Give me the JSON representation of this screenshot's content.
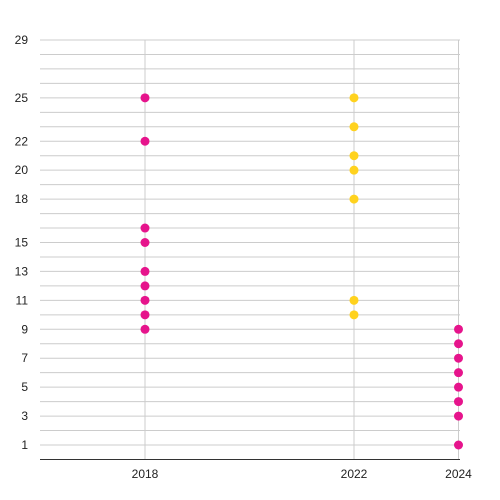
{
  "colors": {
    "magenta": "#e6148c",
    "yellow": "#ffd21e",
    "grid": "#cccccc",
    "axis": "#333333"
  },
  "chart_data": {
    "type": "scatter",
    "title": "",
    "xlabel": "",
    "ylabel": "",
    "x_ticks": [
      2018,
      2022,
      2024
    ],
    "x_range": [
      2016,
      2024
    ],
    "y_ticks": [
      1,
      3,
      5,
      7,
      9,
      11,
      13,
      15,
      18,
      20,
      22,
      25,
      29
    ],
    "y_range": [
      0,
      29
    ],
    "grid": true,
    "legend": "none",
    "points": [
      {
        "x": 2018,
        "y": 25,
        "color": "magenta"
      },
      {
        "x": 2018,
        "y": 22,
        "color": "magenta"
      },
      {
        "x": 2018,
        "y": 16,
        "color": "magenta"
      },
      {
        "x": 2018,
        "y": 15,
        "color": "magenta"
      },
      {
        "x": 2018,
        "y": 13,
        "color": "magenta"
      },
      {
        "x": 2018,
        "y": 12,
        "color": "magenta"
      },
      {
        "x": 2018,
        "y": 11,
        "color": "magenta"
      },
      {
        "x": 2018,
        "y": 10,
        "color": "magenta"
      },
      {
        "x": 2018,
        "y": 9,
        "color": "magenta"
      },
      {
        "x": 2022,
        "y": 25,
        "color": "yellow"
      },
      {
        "x": 2022,
        "y": 23,
        "color": "yellow"
      },
      {
        "x": 2022,
        "y": 21,
        "color": "yellow"
      },
      {
        "x": 2022,
        "y": 20,
        "color": "yellow"
      },
      {
        "x": 2022,
        "y": 18,
        "color": "yellow"
      },
      {
        "x": 2022,
        "y": 11,
        "color": "yellow"
      },
      {
        "x": 2022,
        "y": 10,
        "color": "yellow"
      },
      {
        "x": 2024,
        "y": 9,
        "color": "magenta"
      },
      {
        "x": 2024,
        "y": 8,
        "color": "magenta"
      },
      {
        "x": 2024,
        "y": 7,
        "color": "magenta"
      },
      {
        "x": 2024,
        "y": 6,
        "color": "magenta"
      },
      {
        "x": 2024,
        "y": 5,
        "color": "magenta"
      },
      {
        "x": 2024,
        "y": 4,
        "color": "magenta"
      },
      {
        "x": 2024,
        "y": 3,
        "color": "magenta"
      },
      {
        "x": 2024,
        "y": 1,
        "color": "magenta"
      }
    ]
  }
}
